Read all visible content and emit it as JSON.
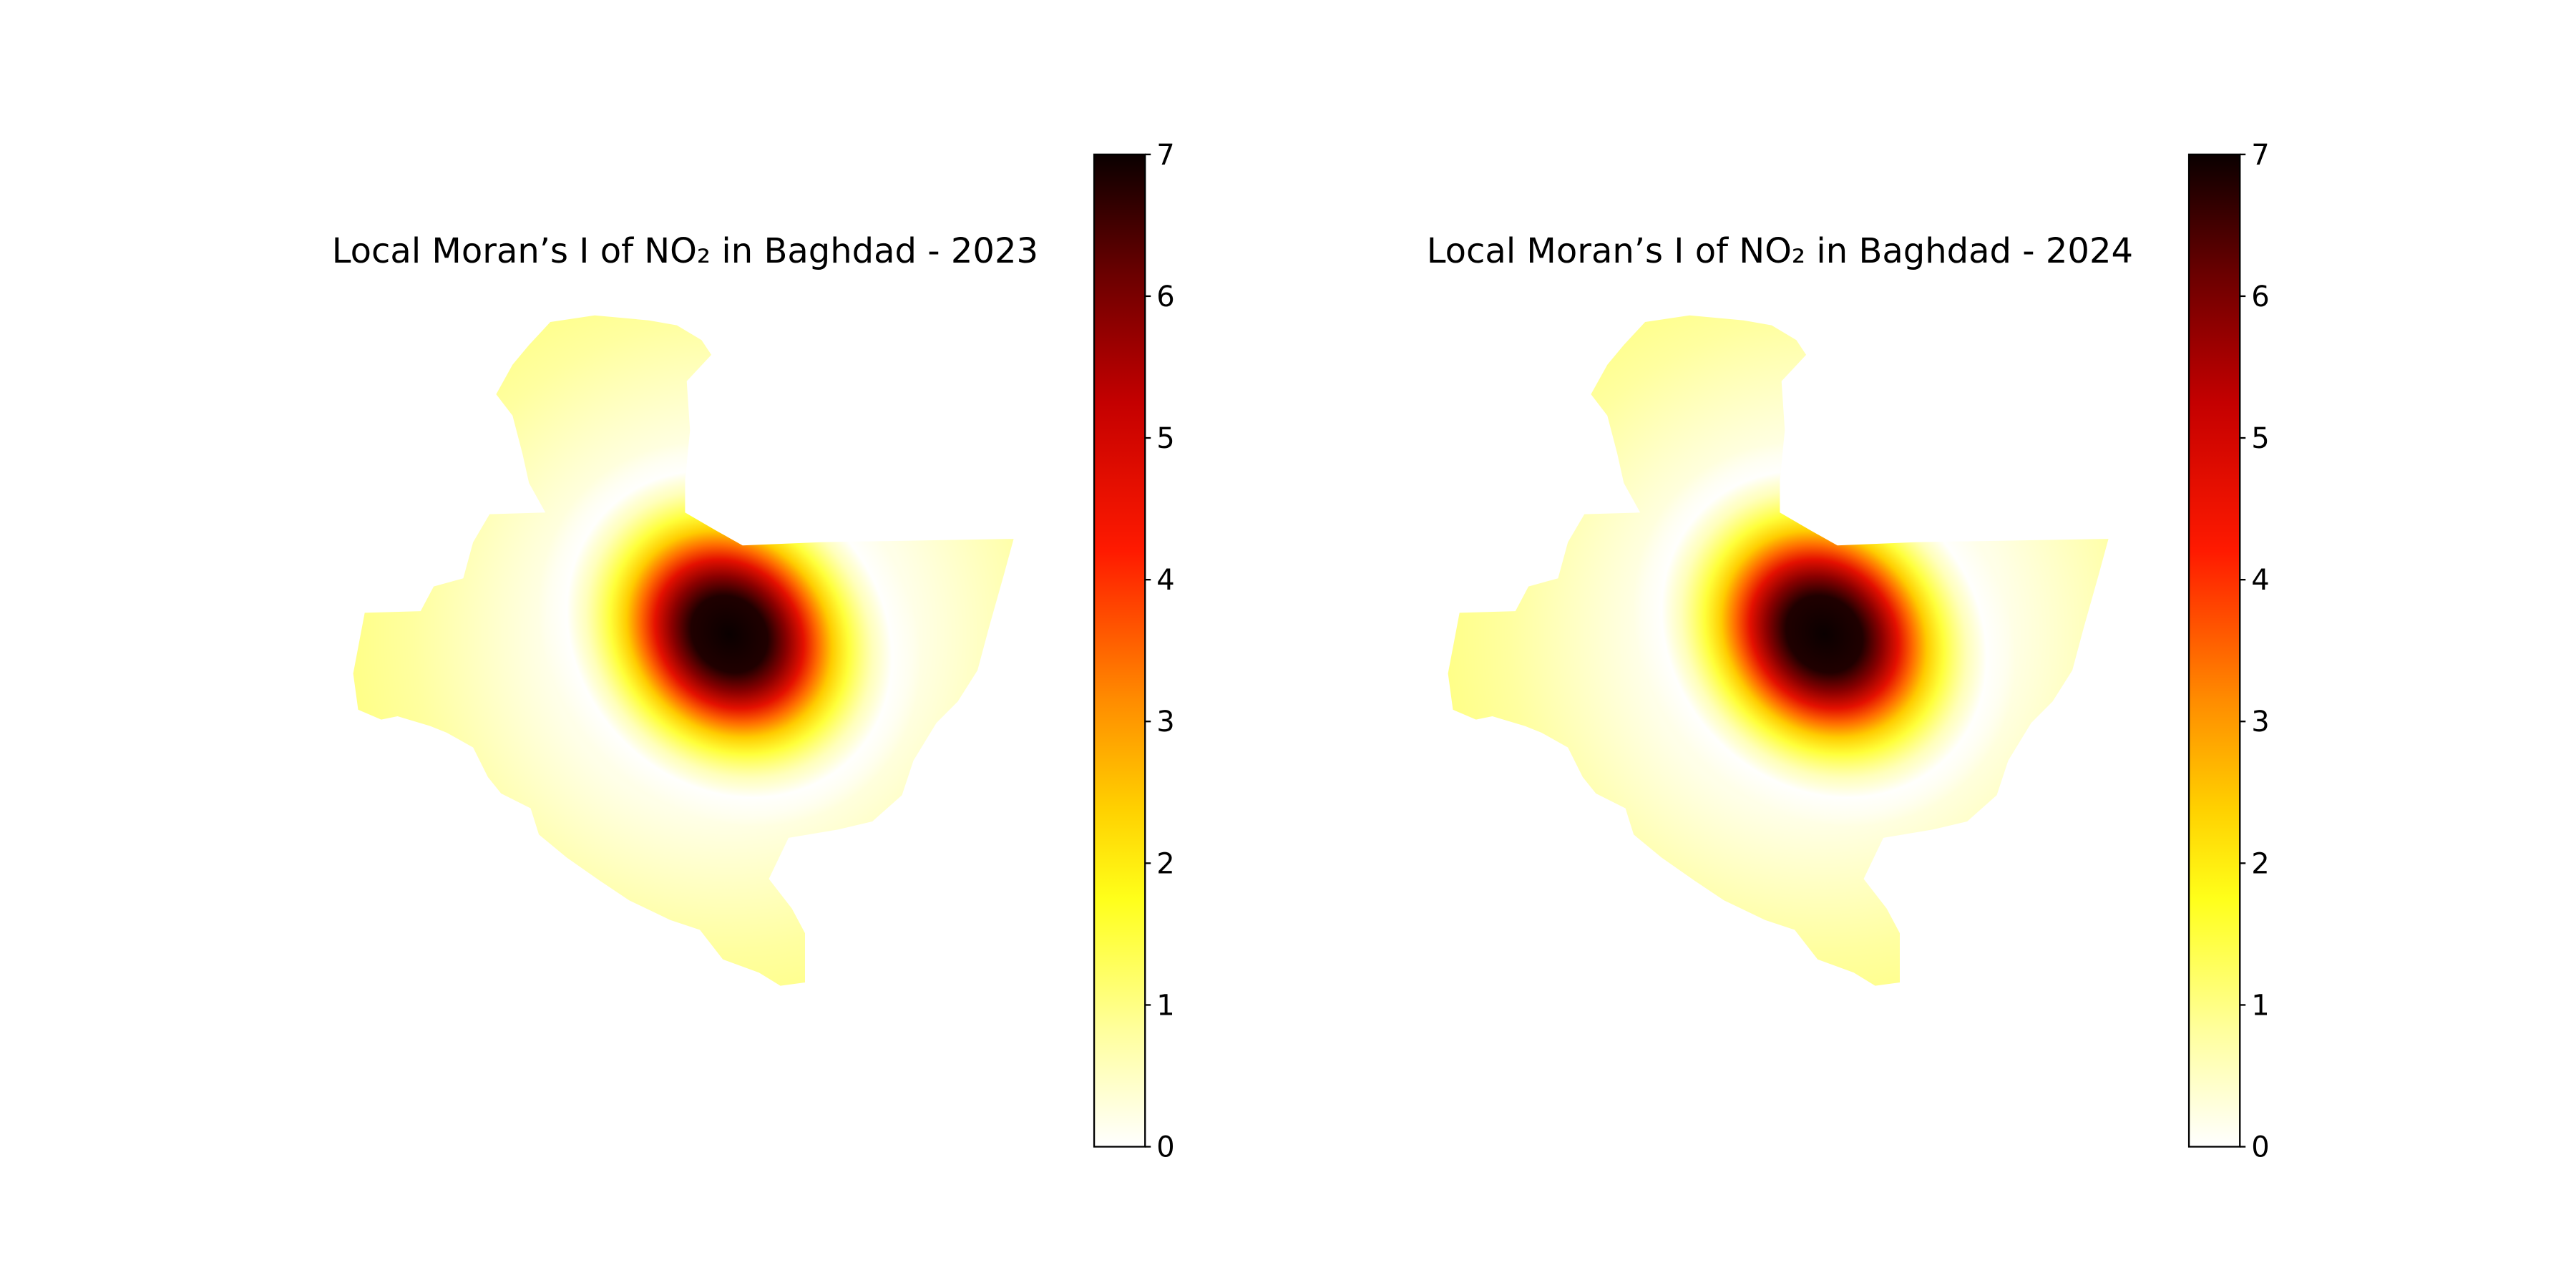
{
  "chart_data": [
    {
      "type": "heatmap",
      "title": "Local Moran’s I of NO₂ in Baghdad - 2023",
      "xlabel": "",
      "ylabel": "",
      "axes_visible": false,
      "grid": false,
      "colormap": "hot_r",
      "colorbar": {
        "min": 0,
        "max": 7,
        "ticks": [
          0,
          1,
          2,
          3,
          4,
          5,
          6,
          7
        ],
        "location": "right"
      },
      "hotspot": {
        "peak_value": 7,
        "peak_location": "east-centre, near the Tigris bend",
        "spread": "elongated toward the south-east"
      },
      "background_value_range": [
        0.3,
        1.5
      ]
    },
    {
      "type": "heatmap",
      "title": "Local Moran’s I of NO₂ in Baghdad - 2024",
      "xlabel": "",
      "ylabel": "",
      "axes_visible": false,
      "grid": false,
      "colormap": "hot_r",
      "colorbar": {
        "min": 0,
        "max": 7,
        "ticks": [
          0,
          1,
          2,
          3,
          4,
          5,
          6,
          7
        ],
        "location": "right"
      },
      "hotspot": {
        "peak_value": 7,
        "peak_location": "east-centre, near the Tigris bend",
        "spread": "elongated toward the south-east"
      },
      "background_value_range": [
        0.3,
        1.5
      ]
    }
  ]
}
